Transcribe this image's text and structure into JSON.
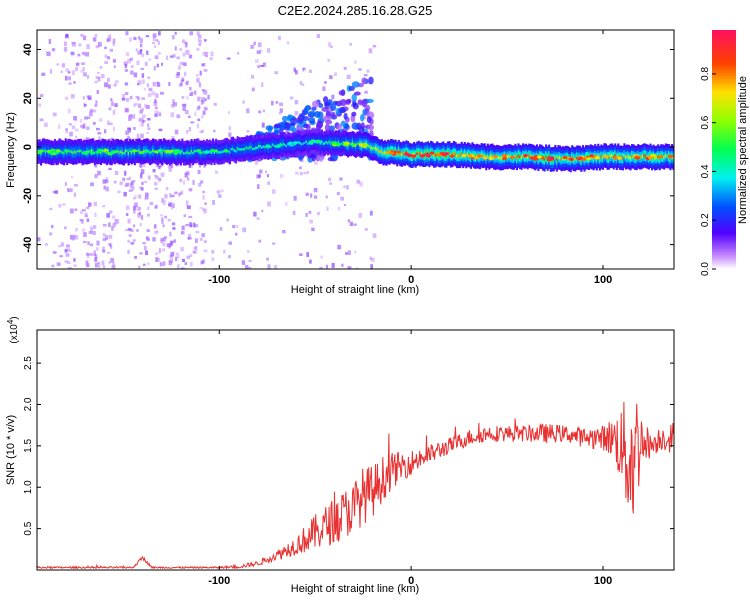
{
  "title": "C2E2.2024.285.16.28.G25",
  "chart_data": [
    {
      "type": "heatmap",
      "xlabel": "Height of straight line (km)",
      "ylabel": "Frequency (Hz)",
      "xlim": [
        -195,
        137
      ],
      "ylim": [
        -50,
        48
      ],
      "xticks": [
        -100,
        0,
        100
      ],
      "yticks": [
        -40,
        -20,
        0,
        20,
        40
      ],
      "colorbar": {
        "label": "Normalized spectral amplitude",
        "range": [
          0,
          0.98
        ],
        "ticks": [
          0.0,
          0.2,
          0.4,
          0.6,
          0.8
        ]
      },
      "band": [
        {
          "x": -195,
          "center": -2,
          "peak": 0.55
        },
        {
          "x": -150,
          "center": -2,
          "peak": 0.6
        },
        {
          "x": -100,
          "center": -2,
          "peak": 0.5
        },
        {
          "x": -80,
          "center": 0,
          "peak": 0.5
        },
        {
          "x": -50,
          "center": 2,
          "peak": 0.45
        },
        {
          "x": -25,
          "center": 1,
          "peak": 0.7
        },
        {
          "x": -15,
          "center": -2,
          "peak": 0.85
        },
        {
          "x": 0,
          "center": -3,
          "peak": 0.95
        },
        {
          "x": 20,
          "center": -3,
          "peak": 0.95
        },
        {
          "x": 40,
          "center": -4,
          "peak": 0.75
        },
        {
          "x": 60,
          "center": -4,
          "peak": 0.9
        },
        {
          "x": 80,
          "center": -5,
          "peak": 0.9
        },
        {
          "x": 100,
          "center": -4,
          "peak": 0.85
        },
        {
          "x": 120,
          "center": -4,
          "peak": 0.85
        },
        {
          "x": 137,
          "center": -4,
          "peak": 0.8
        }
      ],
      "scatter_region": {
        "x": [
          -195,
          -20
        ],
        "ylim": [
          -50,
          48
        ]
      },
      "burst_region": {
        "x": [
          -85,
          -20
        ],
        "ylim": [
          -5,
          30
        ]
      }
    },
    {
      "type": "line",
      "xlabel": "Height of straight line (km)",
      "ylabel": "SNR (10 * v/v)",
      "y_multiplier": "(x10",
      "y_multiplier_exp": "4",
      "y_multiplier_close": ")",
      "xlim": [
        -195,
        137
      ],
      "ylim": [
        0,
        2.9
      ],
      "xticks": [
        -100,
        0,
        100
      ],
      "yticks": [
        0.5,
        1.0,
        1.5,
        2.0,
        2.5
      ],
      "color": "#e83030",
      "series": [
        {
          "x": [
            -195,
            -180,
            -160,
            -145,
            -140,
            -135,
            -120,
            -100,
            -90,
            -80,
            -70,
            -60,
            -50,
            -40,
            -30,
            -25,
            -20,
            -15,
            -10,
            -5,
            0,
            10,
            20,
            30,
            40,
            50,
            60,
            70,
            80,
            90,
            100,
            105,
            110,
            112,
            115,
            118,
            120,
            125,
            130,
            137
          ],
          "y": [
            0.03,
            0.03,
            0.03,
            0.03,
            0.15,
            0.03,
            0.03,
            0.03,
            0.04,
            0.08,
            0.18,
            0.3,
            0.45,
            0.6,
            0.75,
            0.9,
            0.95,
            1.1,
            1.2,
            1.25,
            1.3,
            1.4,
            1.5,
            1.6,
            1.65,
            1.65,
            1.65,
            1.65,
            1.65,
            1.6,
            1.6,
            1.6,
            1.5,
            1.4,
            1.3,
            1.5,
            1.6,
            1.5,
            1.6,
            1.6
          ],
          "noise": [
            0.01,
            0.01,
            0.01,
            0.01,
            0.02,
            0.01,
            0.01,
            0.01,
            0.02,
            0.03,
            0.06,
            0.12,
            0.22,
            0.28,
            0.32,
            0.35,
            0.32,
            0.28,
            0.22,
            0.18,
            0.15,
            0.12,
            0.1,
            0.1,
            0.1,
            0.1,
            0.1,
            0.12,
            0.1,
            0.12,
            0.15,
            0.25,
            0.5,
            0.7,
            0.9,
            0.7,
            0.3,
            0.15,
            0.15,
            0.2
          ]
        }
      ]
    }
  ]
}
